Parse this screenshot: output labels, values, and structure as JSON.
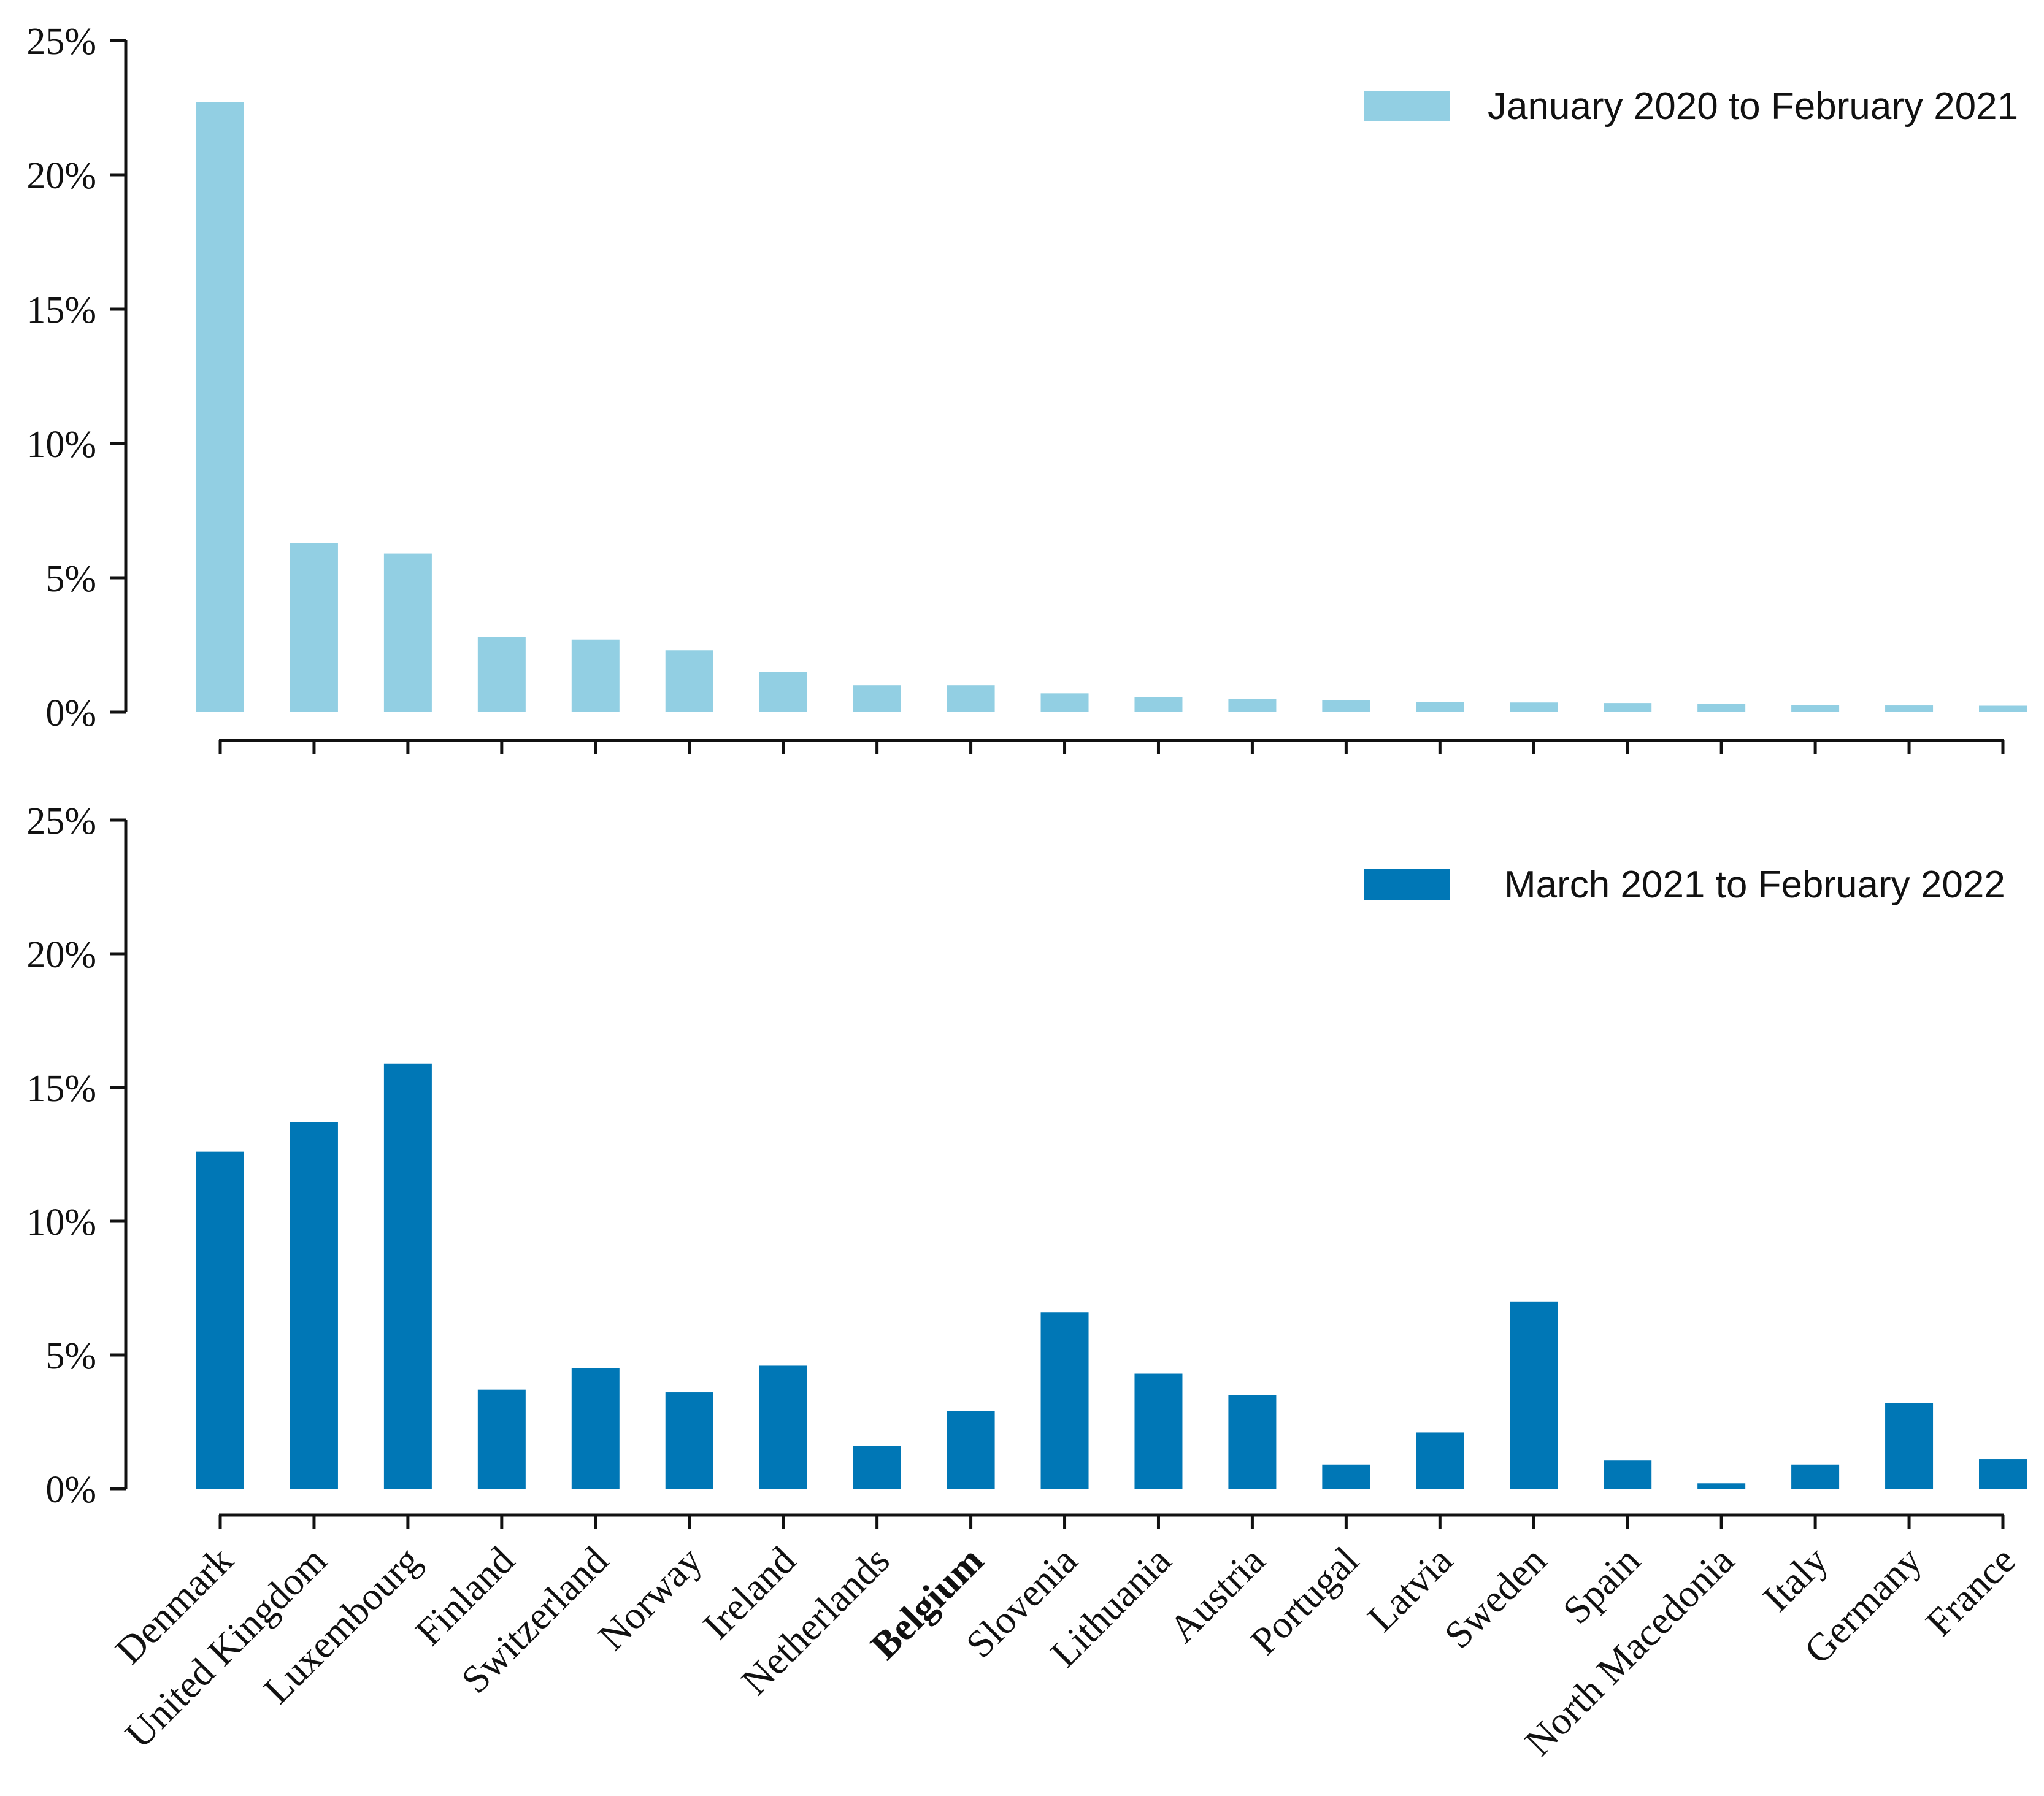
{
  "chart_data": [
    {
      "type": "bar",
      "title": "",
      "xlabel": "",
      "ylabel": "",
      "ylim": [
        0,
        25
      ],
      "yticks": [
        "0%",
        "5%",
        "10%",
        "15%",
        "20%",
        "25%"
      ],
      "yticks_values": [
        0,
        5,
        10,
        15,
        20,
        25
      ],
      "legend_position": "top-right",
      "color": "#92cfe3",
      "categories": [
        "Denmark",
        "United Kingdom",
        "Luxembourg",
        "Finland",
        "Switzerland",
        "Norway",
        "Ireland",
        "Netherlands",
        "Belgium",
        "Slovenia",
        "Lithuania",
        "Austria",
        "Portugal",
        "Latvia",
        "Sweden",
        "Spain",
        "North Macedonia",
        "Italy",
        "Germany",
        "France"
      ],
      "series": [
        {
          "name": "January 2020 to February 2021",
          "values": [
            22.7,
            6.3,
            5.9,
            2.8,
            2.7,
            2.3,
            1.5,
            1.0,
            1.0,
            0.7,
            0.55,
            0.5,
            0.45,
            0.38,
            0.36,
            0.34,
            0.3,
            0.26,
            0.25,
            0.24
          ]
        }
      ]
    },
    {
      "type": "bar",
      "title": "",
      "xlabel": "",
      "ylabel": "",
      "ylim": [
        0,
        25
      ],
      "yticks": [
        "0%",
        "5%",
        "10%",
        "15%",
        "20%",
        "25%"
      ],
      "yticks_values": [
        0,
        5,
        10,
        15,
        20,
        25
      ],
      "legend_position": "top-right",
      "color": "#0077b6",
      "categories": [
        "Denmark",
        "United Kingdom",
        "Luxembourg",
        "Finland",
        "Switzerland",
        "Norway",
        "Ireland",
        "Netherlands",
        "Belgium",
        "Slovenia",
        "Lithuania",
        "Austria",
        "Portugal",
        "Latvia",
        "Sweden",
        "Spain",
        "North Macedonia",
        "Italy",
        "Germany",
        "France"
      ],
      "bold_category": "Belgium",
      "series": [
        {
          "name": "March 2021 to February 2022",
          "values": [
            12.6,
            13.7,
            15.9,
            3.7,
            4.5,
            3.6,
            4.6,
            1.6,
            2.9,
            6.6,
            4.3,
            3.5,
            0.9,
            2.1,
            7.0,
            1.05,
            0.2,
            0.9,
            3.2,
            1.1
          ]
        }
      ]
    }
  ]
}
